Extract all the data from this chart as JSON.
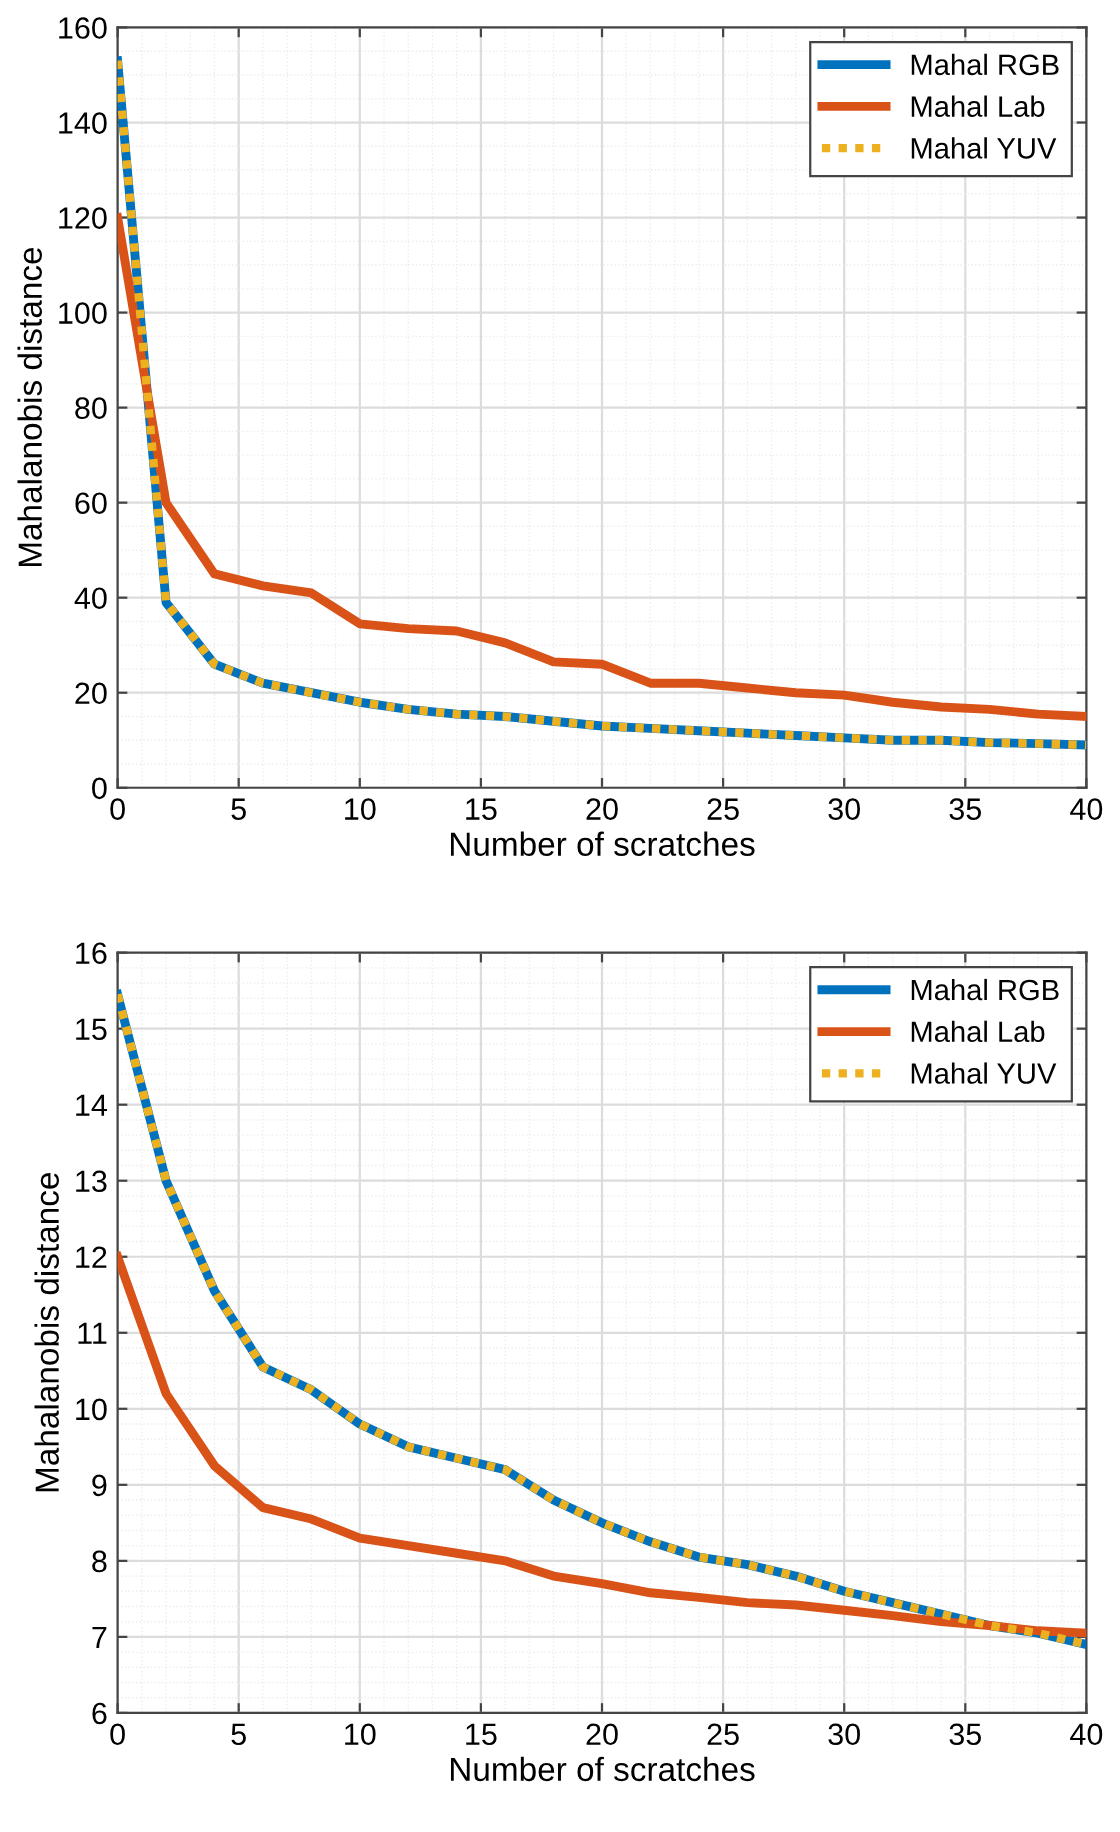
{
  "chart_data": [
    {
      "type": "line",
      "xlabel": "Number of scratches",
      "ylabel": "Mahalanobis distance",
      "x": [
        0,
        2,
        4,
        6,
        8,
        10,
        12,
        14,
        16,
        18,
        20,
        22,
        24,
        26,
        28,
        30,
        32,
        34,
        36,
        38,
        40
      ],
      "series": [
        {
          "name": "Mahal RGB",
          "color": "#0072bd",
          "line_style": "solid",
          "values": [
            153,
            39,
            26,
            22,
            20,
            18,
            16.5,
            15.5,
            15,
            14,
            13,
            12.5,
            12,
            11.5,
            11,
            10.5,
            10,
            10,
            9.5,
            9.3,
            9
          ]
        },
        {
          "name": "Mahal Lab",
          "color": "#d95319",
          "line_style": "solid",
          "values": [
            120,
            60,
            45,
            42.5,
            41,
            34.5,
            33.5,
            33,
            30.5,
            26.5,
            26,
            22,
            22,
            21,
            20,
            19.5,
            18,
            17,
            16.5,
            15.5,
            15
          ]
        },
        {
          "name": "Mahal YUV",
          "color": "#edb120",
          "line_style": "dotted",
          "values": [
            153,
            39,
            26,
            22,
            20,
            18,
            16.5,
            15.5,
            15,
            14,
            13,
            12.5,
            12,
            11.5,
            11,
            10.5,
            10,
            10,
            9.5,
            9.3,
            9
          ]
        }
      ],
      "xlim": [
        0,
        40
      ],
      "xticks": [
        0,
        5,
        10,
        15,
        20,
        25,
        30,
        35,
        40
      ],
      "ylim": [
        0,
        160
      ],
      "yticks": [
        0,
        20,
        40,
        60,
        80,
        100,
        120,
        140,
        160
      ],
      "grid": true,
      "legend": "top right"
    },
    {
      "type": "line",
      "xlabel": "Number of scratches",
      "ylabel": "Mahalanobis distance",
      "x": [
        0,
        2,
        4,
        6,
        8,
        10,
        12,
        14,
        16,
        18,
        20,
        22,
        24,
        26,
        28,
        30,
        32,
        34,
        36,
        38,
        40
      ],
      "series": [
        {
          "name": "Mahal RGB",
          "color": "#0072bd",
          "line_style": "solid",
          "values": [
            15.45,
            13.0,
            11.55,
            10.55,
            10.25,
            9.8,
            9.5,
            9.35,
            9.2,
            8.8,
            8.5,
            8.25,
            8.05,
            7.95,
            7.8,
            7.6,
            7.45,
            7.3,
            7.15,
            7.05,
            6.9
          ]
        },
        {
          "name": "Mahal Lab",
          "color": "#d95319",
          "line_style": "solid",
          "values": [
            12.0,
            10.2,
            9.25,
            8.7,
            8.55,
            8.3,
            8.2,
            8.1,
            8.0,
            7.8,
            7.7,
            7.58,
            7.52,
            7.45,
            7.42,
            7.35,
            7.28,
            7.2,
            7.15,
            7.08,
            7.05
          ]
        },
        {
          "name": "Mahal YUV",
          "color": "#edb120",
          "line_style": "dotted",
          "values": [
            15.45,
            13.0,
            11.55,
            10.55,
            10.25,
            9.8,
            9.5,
            9.35,
            9.2,
            8.8,
            8.5,
            8.25,
            8.05,
            7.95,
            7.8,
            7.6,
            7.45,
            7.3,
            7.15,
            7.05,
            6.9
          ]
        }
      ],
      "xlim": [
        0,
        40
      ],
      "xticks": [
        0,
        5,
        10,
        15,
        20,
        25,
        30,
        35,
        40
      ],
      "ylim": [
        6,
        16
      ],
      "yticks": [
        6,
        7,
        8,
        9,
        10,
        11,
        12,
        13,
        14,
        15,
        16
      ],
      "grid": true,
      "legend": "top right"
    }
  ]
}
